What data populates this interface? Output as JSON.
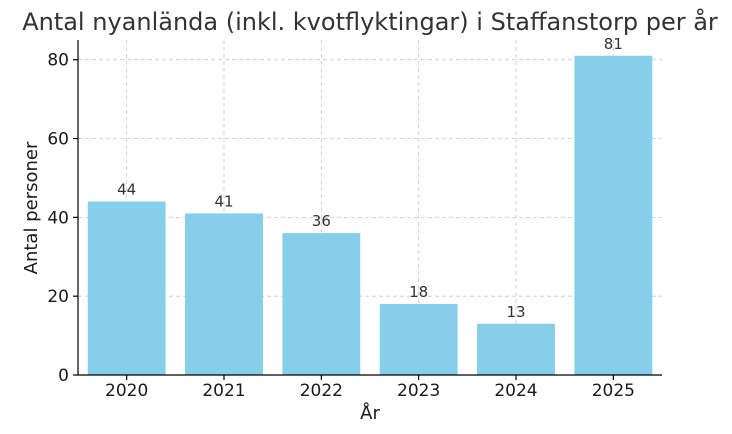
{
  "chart_data": {
    "type": "bar",
    "title": "Antal nyanlända (inkl. kvotflyktingar) i Staffanstorp per år",
    "xlabel": "År",
    "ylabel": "Antal personer",
    "categories": [
      "2020",
      "2021",
      "2022",
      "2023",
      "2024",
      "2025"
    ],
    "values": [
      44,
      41,
      36,
      18,
      13,
      81
    ],
    "data_labels": [
      "44",
      "41",
      "36",
      "18",
      "13",
      "81"
    ],
    "y_ticks": [
      0,
      20,
      40,
      60,
      80
    ],
    "y_tick_labels": [
      "0",
      "20",
      "40",
      "60",
      "80"
    ],
    "ylim": [
      0,
      85
    ],
    "grid": true,
    "bar_color": "#87CEEB"
  }
}
